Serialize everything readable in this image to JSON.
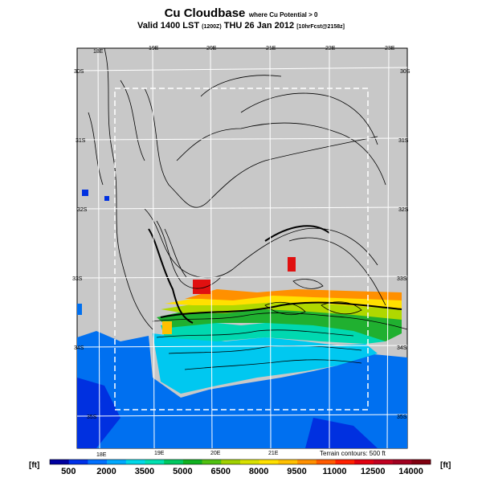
{
  "title": {
    "main": "Cu Cloudbase",
    "qualifier": "where Cu Potential > 0",
    "valid": "Valid 1400 LST",
    "run": "(1200Z)",
    "date": "THU 26 Jan 2012",
    "info": "[10hrFcst@2158z]"
  },
  "map": {
    "lon_labels_top": [
      "18E",
      "19E",
      "20E",
      "21E",
      "22E",
      "23E"
    ],
    "lon_labels_bottom": [
      "18E",
      "19E",
      "20E",
      "21E"
    ],
    "lat_labels_left": [
      "30S",
      "31S",
      "32S",
      "33S",
      "34S",
      "35S"
    ],
    "lat_labels_right": [
      "30S",
      "31S",
      "32S",
      "33S",
      "34S",
      "35S"
    ],
    "terrain_note": "Terrain contours: 500 ft"
  },
  "colorbar": {
    "unit": "[ft]",
    "labels": [
      "500",
      "2000",
      "3500",
      "5000",
      "6500",
      "8000",
      "9500",
      "11000",
      "12500",
      "14000"
    ],
    "colors": [
      "#0000a0",
      "#0030e8",
      "#0070ff",
      "#00a8ff",
      "#00d8e8",
      "#00e0b0",
      "#00c860",
      "#10b020",
      "#50c010",
      "#a0d000",
      "#d8e000",
      "#ffe000",
      "#ffc000",
      "#ff9000",
      "#ff5a00",
      "#ff2000",
      "#e00010",
      "#c00020",
      "#a00020",
      "#800010"
    ]
  }
}
